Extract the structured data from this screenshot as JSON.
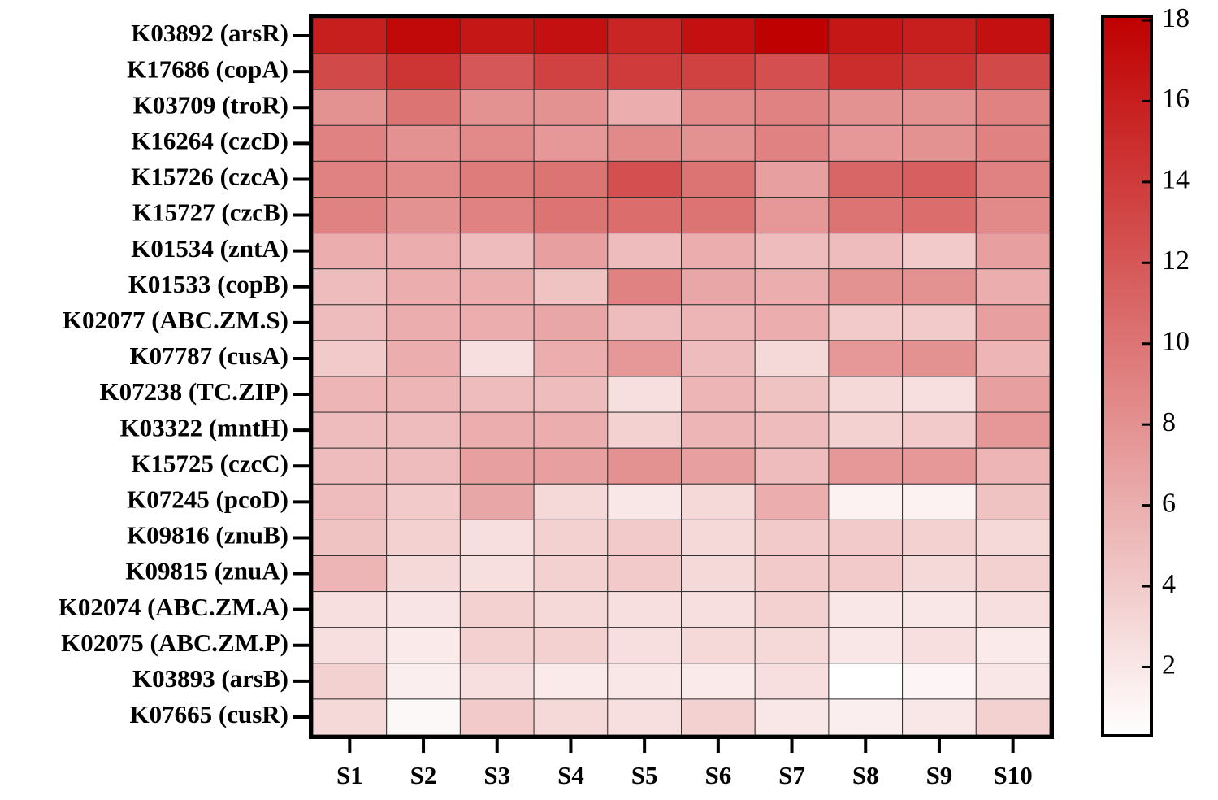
{
  "chart_data": {
    "type": "heatmap",
    "rows": [
      "K03892 (arsR)",
      "K17686 (copA)",
      "K03709 (troR)",
      "K16264 (czcD)",
      "K15726 (czcA)",
      "K15727 (czcB)",
      "K01534 (zntA)",
      "K01533 (copB)",
      "K02077 (ABC.ZM.S)",
      "K07787 (cusA)",
      "K07238 (TC.ZIP)",
      "K03322 (mntH)",
      "K15725 (czcC)",
      "K07245 (pcoD)",
      "K09816 (znuB)",
      "K09815 (znuA)",
      "K02074 (ABC.ZM.A)",
      "K02075 (ABC.ZM.P)",
      "K03893 (arsB)",
      "K07665 (cusR)"
    ],
    "columns": [
      "S1",
      "S2",
      "S3",
      "S4",
      "S5",
      "S6",
      "S7",
      "S8",
      "S9",
      "S10"
    ],
    "values": [
      [
        16,
        17.5,
        16.5,
        17,
        15.5,
        17,
        18,
        16.5,
        16,
        17
      ],
      [
        13,
        14.5,
        12,
        13.5,
        14,
        13.5,
        12.5,
        15,
        14.5,
        13
      ],
      [
        8,
        10,
        8,
        8,
        6,
        8.5,
        9,
        8,
        8,
        9
      ],
      [
        9,
        8,
        8.5,
        7.5,
        8.5,
        8,
        9,
        7.5,
        8,
        9
      ],
      [
        9,
        8.5,
        9.5,
        10,
        12.5,
        10,
        7,
        11,
        11.5,
        9
      ],
      [
        9,
        8,
        9,
        10,
        10.5,
        10,
        7.5,
        10,
        10.5,
        8.5
      ],
      [
        6,
        6,
        5,
        7,
        5,
        6,
        5,
        5,
        4,
        7
      ],
      [
        5,
        6,
        6,
        4.5,
        9,
        6.5,
        6,
        8,
        8,
        6
      ],
      [
        5,
        6,
        6,
        6.5,
        5,
        5.5,
        6,
        4,
        4,
        7
      ],
      [
        4,
        6,
        2.5,
        6,
        7.5,
        5,
        3,
        7.5,
        8,
        5.5
      ],
      [
        5.5,
        5.5,
        5,
        5,
        2.5,
        5.5,
        4.5,
        3,
        2.5,
        7
      ],
      [
        5,
        5,
        6,
        6,
        3.5,
        5.5,
        5,
        3.5,
        4,
        7.5
      ],
      [
        5,
        5,
        7,
        7,
        8,
        7,
        5,
        7.5,
        7.5,
        5.5
      ],
      [
        5,
        4,
        6.5,
        3,
        2,
        3,
        6,
        1.2,
        1.2,
        4.5
      ],
      [
        4.5,
        3.5,
        2.5,
        3.5,
        4,
        3,
        4,
        4,
        3.5,
        3
      ],
      [
        5.5,
        3,
        2.5,
        3.5,
        4,
        3,
        4,
        4,
        3,
        3.5
      ],
      [
        2.5,
        2.2,
        3.5,
        3,
        2.5,
        2.5,
        3.5,
        2,
        2,
        2.5
      ],
      [
        2.5,
        1.8,
        3.5,
        3.5,
        2.5,
        3,
        3,
        2,
        2.5,
        1.8
      ],
      [
        3.5,
        1.5,
        2.5,
        1.8,
        2,
        1.8,
        2.5,
        0.3,
        1,
        2
      ],
      [
        3,
        0.8,
        4,
        3,
        2.5,
        3.5,
        2,
        1.5,
        2,
        3.5
      ]
    ],
    "zlim": [
      0.3,
      18.1
    ],
    "zticks": [
      2,
      4,
      6,
      8,
      10,
      12,
      14,
      16,
      18
    ],
    "colormap": [
      "#ffffff",
      "#c00000"
    ]
  }
}
